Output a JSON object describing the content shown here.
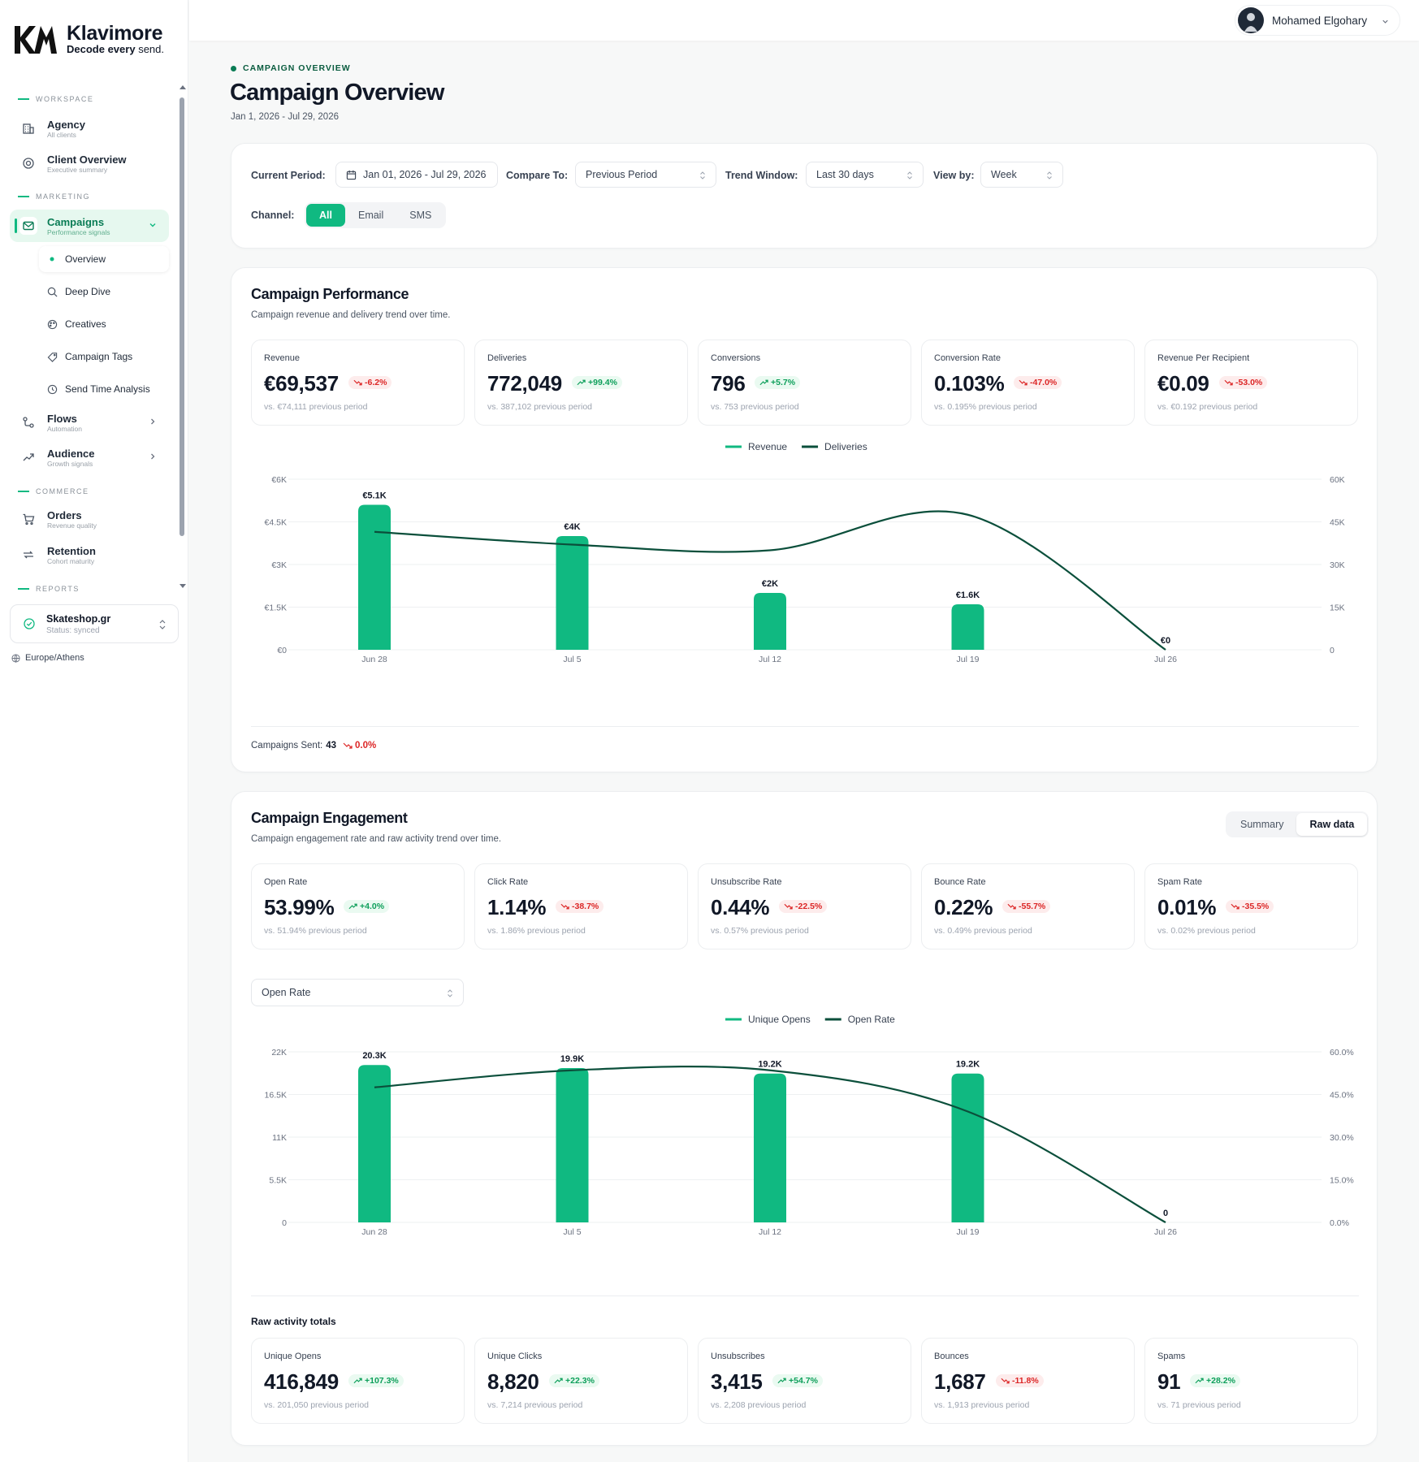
{
  "brand": {
    "name": "Klavimore",
    "tagline_bold": "Decode every",
    "tagline_light": "send."
  },
  "sidebar": {
    "sections": {
      "workspace": "WORKSPACE",
      "marketing": "MARKETING",
      "commerce": "COMMERCE",
      "reports": "REPORTS"
    },
    "items": [
      {
        "label": "Agency",
        "sub": "All clients",
        "icon": "building-icon"
      },
      {
        "label": "Client Overview",
        "sub": "Executive summary",
        "icon": "gauge-icon"
      },
      {
        "label": "Campaigns",
        "sub": "Performance signals",
        "icon": "mail-icon"
      },
      {
        "label": "Flows",
        "sub": "Automation",
        "icon": "flow-icon"
      },
      {
        "label": "Audience",
        "sub": "Growth signals",
        "icon": "trend-icon"
      },
      {
        "label": "Orders",
        "sub": "Revenue quality",
        "icon": "cart-icon"
      },
      {
        "label": "Retention",
        "sub": "Cohort maturity",
        "icon": "repeat-icon"
      }
    ],
    "campaign_sub": [
      "Overview",
      "Deep Dive",
      "Creatives",
      "Campaign Tags",
      "Send Time Analysis"
    ],
    "account": {
      "name": "Skateshop.gr",
      "status": "Status: synced"
    },
    "timezone": "Europe/Athens"
  },
  "user": {
    "name": "Mohamed Elgohary"
  },
  "page": {
    "eyebrow": "CAMPAIGN OVERVIEW",
    "title": "Campaign Overview",
    "date_range": "Jan 1, 2026 - Jul 29, 2026"
  },
  "filters": {
    "current_period_label": "Current Period:",
    "current_period": "Jan 01, 2026 - Jul 29, 2026",
    "compare_label": "Compare To:",
    "compare": "Previous Period",
    "trend_label": "Trend Window:",
    "trend": "Last 30 days",
    "viewby_label": "View by:",
    "viewby": "Week",
    "channel_label": "Channel:",
    "channels": [
      "All",
      "Email",
      "SMS"
    ]
  },
  "performance": {
    "title": "Campaign Performance",
    "subtitle": "Campaign revenue and delivery trend over time.",
    "kpis": [
      {
        "label": "Revenue",
        "value": "€69,537",
        "delta": "-6.2%",
        "dir": "dn",
        "prev": "vs. €74,111 previous period"
      },
      {
        "label": "Deliveries",
        "value": "772,049",
        "delta": "+99.4%",
        "dir": "up",
        "prev": "vs. 387,102 previous period"
      },
      {
        "label": "Conversions",
        "value": "796",
        "delta": "+5.7%",
        "dir": "up",
        "prev": "vs. 753 previous period"
      },
      {
        "label": "Conversion Rate",
        "value": "0.103%",
        "delta": "-47.0%",
        "dir": "dn",
        "prev": "vs. 0.195% previous period"
      },
      {
        "label": "Revenue Per Recipient",
        "value": "€0.09",
        "delta": "-53.0%",
        "dir": "dn",
        "prev": "vs. €0.192 previous period"
      }
    ],
    "campaigns_sent_label": "Campaigns Sent:",
    "campaigns_sent": "43",
    "campaigns_sent_delta": "0.0%"
  },
  "engagement": {
    "title": "Campaign Engagement",
    "subtitle": "Campaign engagement rate and raw activity trend over time.",
    "toggle": [
      "Summary",
      "Raw data"
    ],
    "kpis": [
      {
        "label": "Open Rate",
        "value": "53.99%",
        "delta": "+4.0%",
        "dir": "up",
        "prev": "vs. 51.94% previous period"
      },
      {
        "label": "Click Rate",
        "value": "1.14%",
        "delta": "-38.7%",
        "dir": "dn",
        "prev": "vs. 1.86% previous period"
      },
      {
        "label": "Unsubscribe Rate",
        "value": "0.44%",
        "delta": "-22.5%",
        "dir": "dn",
        "prev": "vs. 0.57% previous period"
      },
      {
        "label": "Bounce Rate",
        "value": "0.22%",
        "delta": "-55.7%",
        "dir": "dn",
        "prev": "vs. 0.49% previous period"
      },
      {
        "label": "Spam Rate",
        "value": "0.01%",
        "delta": "-35.5%",
        "dir": "dn",
        "prev": "vs. 0.02% previous period"
      }
    ],
    "metric_select": "Open Rate",
    "raw_title": "Raw activity totals",
    "raw_kpis": [
      {
        "label": "Unique Opens",
        "value": "416,849",
        "delta": "+107.3%",
        "dir": "up",
        "prev": "vs. 201,050 previous period"
      },
      {
        "label": "Unique Clicks",
        "value": "8,820",
        "delta": "+22.3%",
        "dir": "up",
        "prev": "vs. 7,214 previous period"
      },
      {
        "label": "Unsubscribes",
        "value": "3,415",
        "delta": "+54.7%",
        "dir": "up",
        "prev": "vs. 2,208 previous period"
      },
      {
        "label": "Bounces",
        "value": "1,687",
        "delta": "-11.8%",
        "dir": "dn",
        "prev": "vs. 1,913 previous period"
      },
      {
        "label": "Spams",
        "value": "91",
        "delta": "+28.2%",
        "dir": "up",
        "prev": "vs. 71 previous period"
      }
    ]
  },
  "colors": {
    "accent": "#10b981",
    "line": "#0b4f3b",
    "up": "#0d9f5a",
    "down": "#dc2626"
  },
  "chart_data": [
    {
      "type": "bar",
      "categories": [
        "Jun 28",
        "Jul 5",
        "Jul 12",
        "Jul 19",
        "Jul 26"
      ],
      "series": [
        {
          "name": "Revenue",
          "type": "bar",
          "axis": "left",
          "values": [
            5100,
            4000,
            2000,
            1600,
            0
          ],
          "labels": [
            "€5.1K",
            "€4K",
            "€2K",
            "€1.6K",
            "€0"
          ]
        },
        {
          "name": "Deliveries",
          "type": "line",
          "axis": "right",
          "values": [
            41500,
            37000,
            35000,
            47500,
            0
          ]
        }
      ],
      "left_ticks": [
        "€0",
        "€1.5K",
        "€3K",
        "€4.5K",
        "€6K"
      ],
      "ylim_left": [
        0,
        6000
      ],
      "right_ticks": [
        "0",
        "15K",
        "30K",
        "45K",
        "60K"
      ],
      "ylim_right": [
        0,
        60000
      ],
      "legend": "top-center",
      "grid": true
    },
    {
      "type": "bar",
      "categories": [
        "Jun 28",
        "Jul 5",
        "Jul 12",
        "Jul 19",
        "Jul 26"
      ],
      "series": [
        {
          "name": "Unique Opens",
          "type": "bar",
          "axis": "left",
          "values": [
            20300,
            19900,
            19200,
            19200,
            0
          ],
          "labels": [
            "20.3K",
            "19.9K",
            "19.2K",
            "19.2K",
            "0"
          ]
        },
        {
          "name": "Open Rate",
          "type": "line",
          "axis": "right",
          "values": [
            47.5,
            53.5,
            53.5,
            39,
            0
          ]
        }
      ],
      "left_ticks": [
        "0",
        "5.5K",
        "11K",
        "16.5K",
        "22K"
      ],
      "ylim_left": [
        0,
        22000
      ],
      "right_ticks": [
        "0.0%",
        "15.0%",
        "30.0%",
        "45.0%",
        "60.0%"
      ],
      "ylim_right": [
        0,
        60
      ],
      "legend": "top-center",
      "grid": true
    }
  ]
}
